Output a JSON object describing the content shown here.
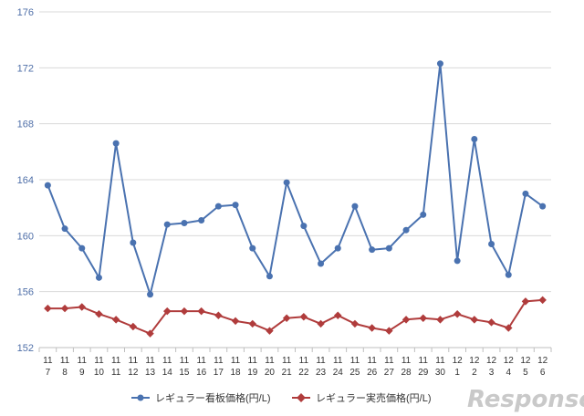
{
  "chart_data": {
    "type": "line",
    "categories": [
      [
        "11",
        "7"
      ],
      [
        "11",
        "8"
      ],
      [
        "11",
        "9"
      ],
      [
        "11",
        "10"
      ],
      [
        "11",
        "11"
      ],
      [
        "11",
        "12"
      ],
      [
        "11",
        "13"
      ],
      [
        "11",
        "14"
      ],
      [
        "11",
        "15"
      ],
      [
        "11",
        "16"
      ],
      [
        "11",
        "17"
      ],
      [
        "11",
        "18"
      ],
      [
        "11",
        "19"
      ],
      [
        "11",
        "20"
      ],
      [
        "11",
        "21"
      ],
      [
        "11",
        "22"
      ],
      [
        "11",
        "23"
      ],
      [
        "11",
        "24"
      ],
      [
        "11",
        "25"
      ],
      [
        "11",
        "26"
      ],
      [
        "11",
        "27"
      ],
      [
        "11",
        "28"
      ],
      [
        "11",
        "29"
      ],
      [
        "11",
        "30"
      ],
      [
        "12",
        "1"
      ],
      [
        "12",
        "2"
      ],
      [
        "12",
        "3"
      ],
      [
        "12",
        "4"
      ],
      [
        "12",
        "5"
      ],
      [
        "12",
        "6"
      ]
    ],
    "ylim": [
      152,
      176
    ],
    "yticks": [
      152,
      156,
      160,
      164,
      168,
      172,
      176
    ],
    "grid": true,
    "legend_position": "bottom",
    "series": [
      {
        "name": "レギュラー看板価格(円/L)",
        "color": "#4a72b0",
        "marker": "circle",
        "values": [
          163.6,
          160.5,
          159.1,
          157.0,
          166.6,
          159.5,
          155.8,
          160.8,
          160.9,
          161.1,
          162.1,
          162.2,
          159.1,
          157.1,
          163.8,
          160.7,
          158.0,
          159.1,
          162.1,
          159.0,
          159.1,
          160.4,
          161.5,
          172.3,
          158.2,
          166.9,
          159.4,
          157.2,
          163.0,
          162.1
        ]
      },
      {
        "name": "レギュラー実売価格(円/L)",
        "color": "#b03c3c",
        "marker": "diamond",
        "values": [
          154.8,
          154.8,
          154.9,
          154.4,
          154.0,
          153.5,
          153.0,
          154.6,
          154.6,
          154.6,
          154.3,
          153.9,
          153.7,
          153.2,
          154.1,
          154.2,
          153.7,
          154.3,
          153.7,
          153.4,
          153.2,
          154.0,
          154.1,
          154.0,
          154.4,
          154.0,
          153.8,
          153.4,
          155.3,
          155.4
        ]
      }
    ]
  },
  "watermark": "Response."
}
